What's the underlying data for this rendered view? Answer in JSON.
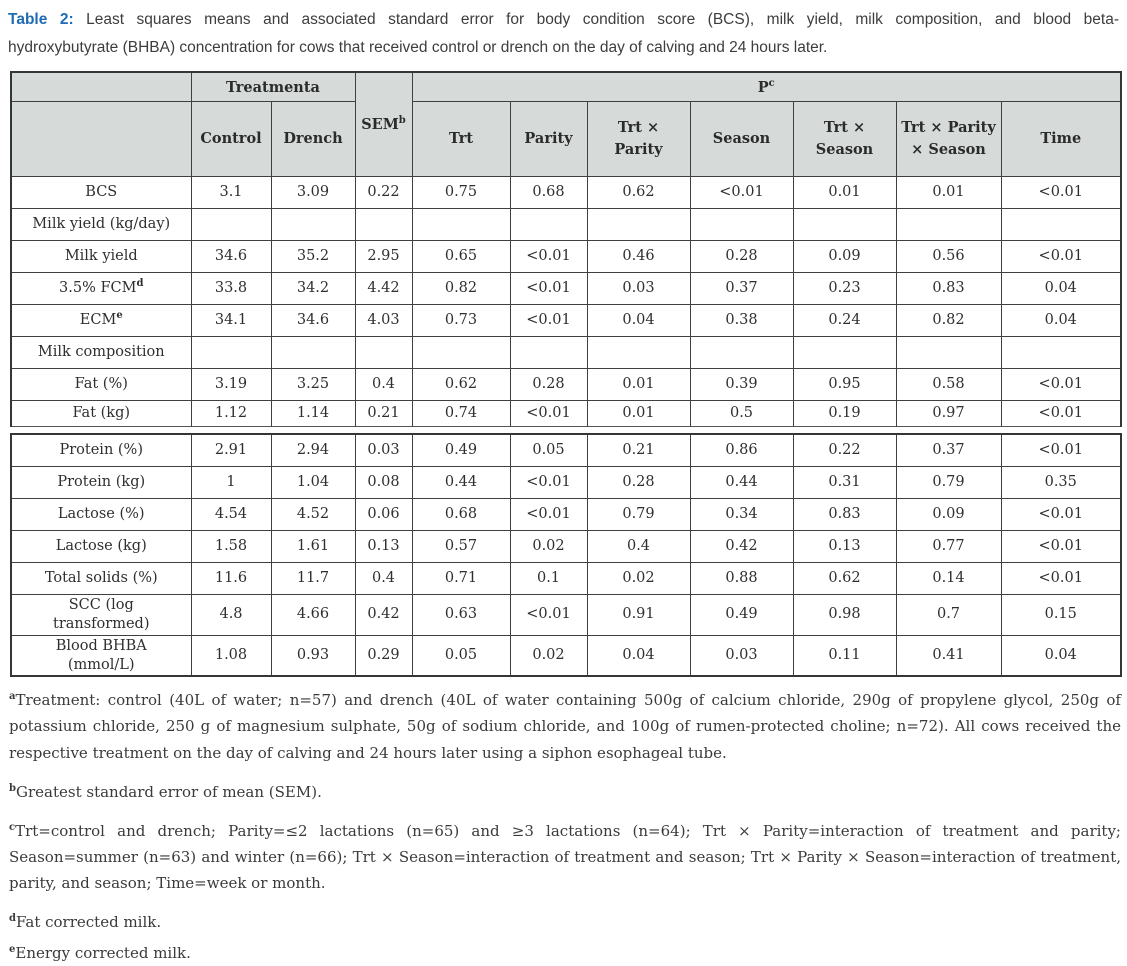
{
  "caption": {
    "prefix": "Table 2:",
    "line1_rest": " Least squares means and associated standard error for body condition score (BCS), milk yield, milk composition, and blood beta-",
    "line2": "hydroxybutyrate (BHBA) concentration for cows that received control or drench on the day of calving and 24 hours later."
  },
  "table": {
    "header": {
      "treatment": "Treatmenta",
      "sem": "SEM^b",
      "p": "P^c",
      "control": "Control",
      "drench": "Drench",
      "p_cols": [
        "Trt",
        "Parity",
        "Trt × Parity",
        "Season",
        "Trt × Season",
        "Trt × Parity × Season",
        "Time"
      ]
    },
    "rows": [
      {
        "label": "BCS",
        "values": [
          "3.1",
          "3.09",
          "0.22",
          "0.75",
          "0.68",
          "0.62",
          "<0.01",
          "0.01",
          "0.01",
          "<0.01"
        ]
      },
      {
        "label": "Milk yield (kg/day)",
        "values": [
          "",
          "",
          "",
          "",
          "",
          "",
          "",
          "",
          "",
          ""
        ]
      },
      {
        "label": "Milk yield",
        "values": [
          "34.6",
          "35.2",
          "2.95",
          "0.65",
          "<0.01",
          "0.46",
          "0.28",
          "0.09",
          "0.56",
          "<0.01"
        ]
      },
      {
        "label": "3.5% FCM^d",
        "values": [
          "33.8",
          "34.2",
          "4.42",
          "0.82",
          "<0.01",
          "0.03",
          "0.37",
          "0.23",
          "0.83",
          "0.04"
        ]
      },
      {
        "label": "ECM^e",
        "values": [
          "34.1",
          "34.6",
          "4.03",
          "0.73",
          "<0.01",
          "0.04",
          "0.38",
          "0.24",
          "0.82",
          "0.04"
        ]
      },
      {
        "label": "Milk composition",
        "values": [
          "",
          "",
          "",
          "",
          "",
          "",
          "",
          "",
          "",
          ""
        ]
      },
      {
        "label": "Fat (%)",
        "values": [
          "3.19",
          "3.25",
          "0.4",
          "0.62",
          "0.28",
          "0.01",
          "0.39",
          "0.95",
          "0.58",
          "<0.01"
        ]
      },
      {
        "label": "Fat (kg)",
        "values": [
          "1.12",
          "1.14",
          "0.21",
          "0.74",
          "<0.01",
          "0.01",
          "0.5",
          "0.19",
          "0.97",
          "<0.01"
        ]
      },
      {
        "label": "Protein (%)",
        "values": [
          "2.91",
          "2.94",
          "0.03",
          "0.49",
          "0.05",
          "0.21",
          "0.86",
          "0.22",
          "0.37",
          "<0.01"
        ]
      },
      {
        "label": "Protein (kg)",
        "values": [
          "1",
          "1.04",
          "0.08",
          "0.44",
          "<0.01",
          "0.28",
          "0.44",
          "0.31",
          "0.79",
          "0.35"
        ]
      },
      {
        "label": "Lactose (%)",
        "values": [
          "4.54",
          "4.52",
          "0.06",
          "0.68",
          "<0.01",
          "0.79",
          "0.34",
          "0.83",
          "0.09",
          "<0.01"
        ]
      },
      {
        "label": "Lactose (kg)",
        "values": [
          "1.58",
          "1.61",
          "0.13",
          "0.57",
          "0.02",
          "0.4",
          "0.42",
          "0.13",
          "0.77",
          "<0.01"
        ]
      },
      {
        "label": "Total solids (%)",
        "values": [
          "11.6",
          "11.7",
          "0.4",
          "0.71",
          "0.1",
          "0.02",
          "0.88",
          "0.62",
          "0.14",
          "<0.01"
        ]
      },
      {
        "label": "SCC (log\ntransformed)",
        "values": [
          "4.8",
          "4.66",
          "0.42",
          "0.63",
          "<0.01",
          "0.91",
          "0.49",
          "0.98",
          "0.7",
          "0.15"
        ]
      },
      {
        "label": "Blood BHBA\n(mmol/L)",
        "values": [
          "1.08",
          "0.93",
          "0.29",
          "0.05",
          "0.02",
          "0.04",
          "0.03",
          "0.11",
          "0.41",
          "0.04"
        ]
      }
    ]
  },
  "footnotes": [
    "^aTreatment: control (40L of water; n=57) and drench (40L of water containing 500g of calcium chloride, 290g of propylene glycol, 250g of potassium chloride, 250 g of magnesium sulphate, 50g of sodium chloride, and 100g of rumen-protected choline; n=72). All cows received the respective treatment on the day of calving and 24 hours later using a siphon esophageal tube.",
    "^bGreatest standard error of mean (SEM).",
    "^cTrt=control and drench; Parity=≤2 lactations (n=65) and ≥3 lactations (n=64); Trt × Parity=interaction of treatment and parity; Season=summer (n=63) and winter (n=66); Trt × Season=interaction of treatment and season; Trt × Parity × Season=interaction of treatment, parity, and season; Time=week or month.",
    "^dFat corrected milk.",
    "^eEnergy corrected milk."
  ],
  "colors": {
    "caption_accent": "#1f6cb5",
    "header_bg": "#d6dad9",
    "border": "#3f3f3f",
    "text": "#2f2f2f"
  }
}
